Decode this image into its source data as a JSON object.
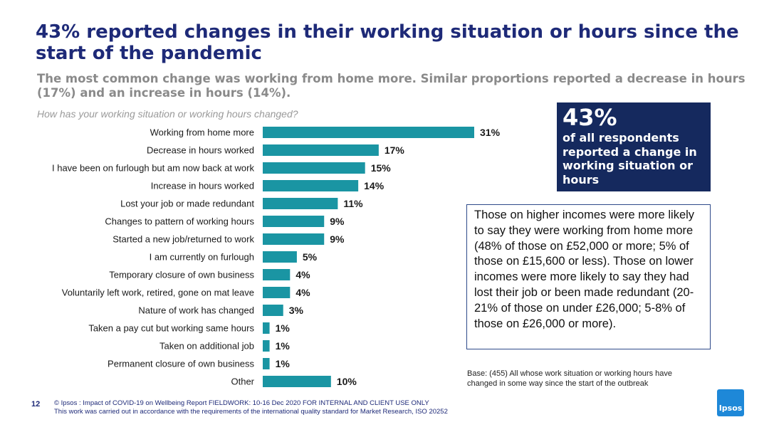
{
  "title": "43% reported changes in their working situation or hours since the start of the pandemic",
  "subtitle": "The most common change was working from home more. Similar proportions reported a decrease in hours (17%) and an increase in hours (14%).",
  "question": "How has your working situation or working hours changed?",
  "callout": {
    "pct": "43%",
    "text": "of all respondents reported a change in working situation or hours"
  },
  "note": "Those on higher incomes were more likely to say they were working from home more (48% of those on £52,000 or more; 5% of those on £15,600 or less). Those on lower incomes were more likely to say they had lost their job or been made redundant (20-21% of those on under £26,000; 5-8% of those on £26,000 or more).",
  "base": "Base: (455) All whose work situation or working hours have changed in some way since the start of the outbreak",
  "footer": {
    "page_number": "12",
    "line1": "© Ipsos : Impact of COVID-19 on Wellbeing Report FIELDWORK: 10-16 Dec 2020 FOR INTERNAL AND CLIENT USE ONLY",
    "line2": "This work was carried out in accordance with the requirements of the international quality standard for Market Research, ISO 20252"
  },
  "logo_text": "Ipsos",
  "colors": {
    "bar": "#1a95a3",
    "title": "#1e2a78",
    "callout_bg": "#15295e"
  },
  "chart_data": {
    "type": "bar",
    "orientation": "horizontal",
    "categories": [
      "Working from home more",
      "Decrease in hours worked",
      "I have been on furlough but am now back at work",
      "Increase in hours worked",
      "Lost your job or made redundant",
      "Changes to pattern of working hours",
      "Started a new job/returned to work",
      "I am currently on furlough",
      "Temporary closure of own business",
      "Voluntarily left work, retired, gone on mat leave",
      "Nature of work has changed",
      "Taken a pay cut but working same hours",
      "Taken on additional job",
      "Permanent closure of own business",
      "Other"
    ],
    "values": [
      31,
      17,
      15,
      14,
      11,
      9,
      9,
      5,
      4,
      4,
      3,
      1,
      1,
      1,
      10
    ],
    "value_labels": [
      "31%",
      "17%",
      "15%",
      "14%",
      "11%",
      "9%",
      "9%",
      "5%",
      "4%",
      "4%",
      "3%",
      "1%",
      "1%",
      "1%",
      "10%"
    ],
    "xlim": [
      0,
      31
    ],
    "grid": false,
    "legend": "none"
  }
}
